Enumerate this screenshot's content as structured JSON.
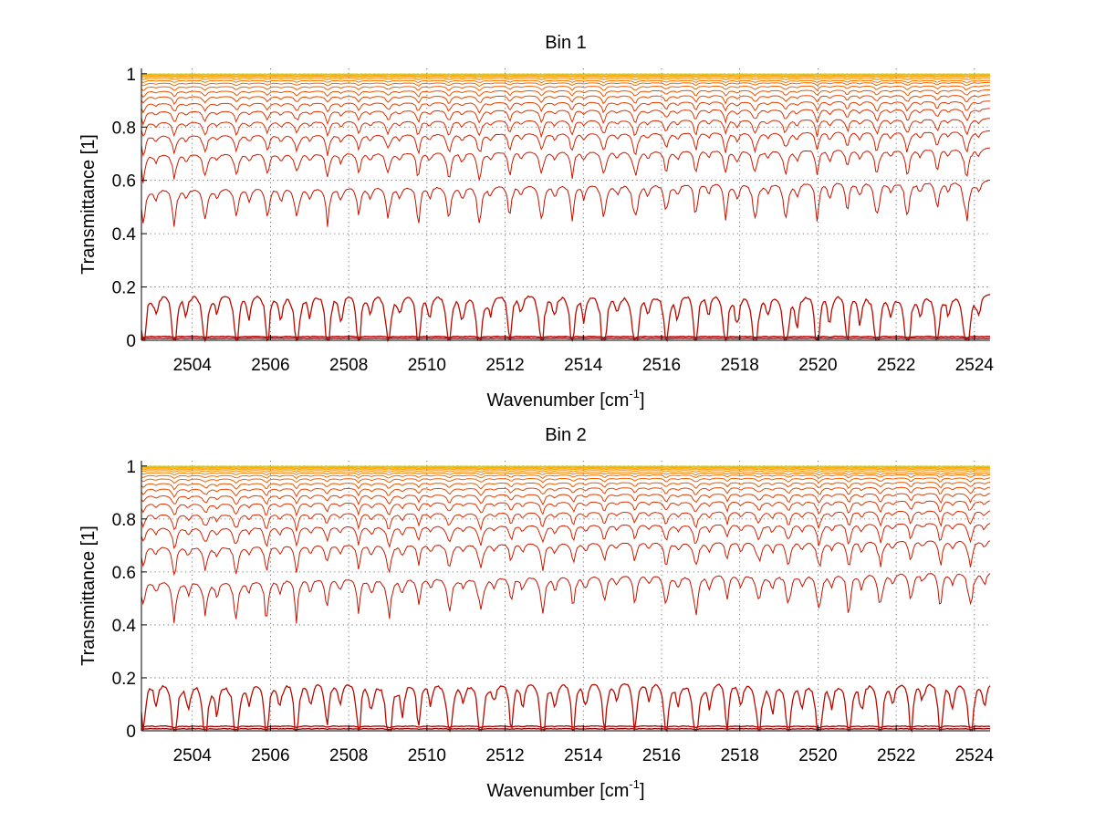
{
  "chart_data": [
    {
      "type": "line",
      "title": "Bin 1",
      "xlabel": "Wavenumber [cm",
      "xlabel_sup": "-1",
      "xlabel_end": "]",
      "ylabel": "Transmittance [1]",
      "xlim": [
        2502.7,
        2524.4
      ],
      "ylim": [
        0,
        1.02
      ],
      "xticks": [
        2504,
        2506,
        2508,
        2510,
        2512,
        2514,
        2516,
        2518,
        2520,
        2522,
        2524
      ],
      "xtick_labels": [
        "2504",
        "2506",
        "2508",
        "2510",
        "2512",
        "2514",
        "2516",
        "2518",
        "2520",
        "2522",
        "2524"
      ],
      "yticks": [
        0,
        0.2,
        0.4,
        0.6,
        0.8,
        1
      ],
      "ytick_labels": [
        "0",
        "0.2",
        "0.4",
        "0.6",
        "0.8",
        "1"
      ],
      "grid": "dotted",
      "series_count": 20,
      "series_colors": [
        "#8b0000",
        "#a80000",
        "#b80a00",
        "#c41200",
        "#cc1a00",
        "#d42000",
        "#dc2a00",
        "#e03300",
        "#e63d00",
        "#ea4800",
        "#ee5500",
        "#f26000",
        "#f46c00",
        "#f67800",
        "#f88600",
        "#fa9400",
        "#fca300",
        "#f5b800",
        "#e6cc00",
        "#c8d400"
      ],
      "baselines": [
        0.008,
        0.015,
        0.18,
        0.57,
        0.7,
        0.77,
        0.82,
        0.86,
        0.89,
        0.915,
        0.935,
        0.952,
        0.965,
        0.975,
        0.983,
        0.989,
        0.993,
        0.996,
        0.998,
        0.999
      ]
    },
    {
      "type": "line",
      "title": "Bin 2",
      "xlabel": "Wavenumber [cm",
      "xlabel_sup": "-1",
      "xlabel_end": "]",
      "ylabel": "Transmittance [1]",
      "xlim": [
        2502.7,
        2524.4
      ],
      "ylim": [
        0,
        1.02
      ],
      "xticks": [
        2504,
        2506,
        2508,
        2510,
        2512,
        2514,
        2516,
        2518,
        2520,
        2522,
        2524
      ],
      "xtick_labels": [
        "2504",
        "2506",
        "2508",
        "2510",
        "2512",
        "2514",
        "2516",
        "2518",
        "2520",
        "2522",
        "2524"
      ],
      "yticks": [
        0,
        0.2,
        0.4,
        0.6,
        0.8,
        1
      ],
      "ytick_labels": [
        "0",
        "0.2",
        "0.4",
        "0.6",
        "0.8",
        "1"
      ],
      "grid": "dotted",
      "series_count": 20,
      "series_colors": [
        "#8b0000",
        "#a80000",
        "#b80a00",
        "#c41200",
        "#cc1a00",
        "#d42000",
        "#dc2a00",
        "#e03300",
        "#e63d00",
        "#ea4800",
        "#ee5500",
        "#f26000",
        "#f46c00",
        "#f67800",
        "#f88600",
        "#fa9400",
        "#fca300",
        "#f5b800",
        "#e6cc00",
        "#c8d400"
      ],
      "baselines": [
        0.008,
        0.018,
        0.19,
        0.57,
        0.7,
        0.77,
        0.82,
        0.86,
        0.89,
        0.915,
        0.935,
        0.952,
        0.965,
        0.975,
        0.983,
        0.989,
        0.993,
        0.996,
        0.998,
        0.999
      ]
    }
  ]
}
